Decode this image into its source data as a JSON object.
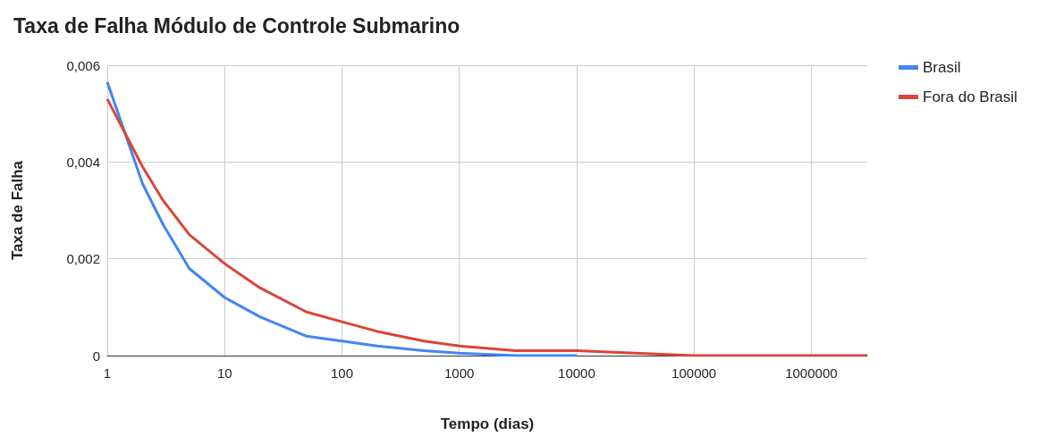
{
  "chart_data": {
    "type": "line",
    "title": "Taxa de Falha Módulo de Controle Submarino",
    "xlabel": "Tempo (dias)",
    "ylabel": "Taxa de Falha",
    "x": [
      1,
      2,
      3,
      5,
      10,
      20,
      50,
      100,
      200,
      500,
      1000,
      3000,
      10000,
      100000,
      1000000,
      3000000
    ],
    "series": [
      {
        "name": "Brasil",
        "color": "#4285f4",
        "values": [
          0.00565,
          0.00355,
          0.0027,
          0.0018,
          0.0012,
          0.0008,
          0.0004,
          0.0003,
          0.0002,
          0.0001,
          5e-05,
          0,
          0,
          null,
          null,
          null
        ]
      },
      {
        "name": "Fora do Brasil",
        "color": "#db4437",
        "values": [
          0.0053,
          0.0039,
          0.0032,
          0.0025,
          0.0019,
          0.0014,
          0.0009,
          0.0007,
          0.0005,
          0.0003,
          0.0002,
          0.0001,
          0.0001,
          0,
          0,
          0
        ]
      }
    ],
    "log": "x",
    "xlim": [
      1,
      3000000
    ],
    "xticks": [
      1,
      10,
      100,
      1000,
      10000,
      100000,
      1000000
    ],
    "ylim": [
      0,
      0.006
    ],
    "yticks": [
      0,
      {
        "value": 0.002,
        "label": "0,002"
      },
      {
        "value": 0.004,
        "label": "0,004"
      },
      {
        "value": 0.006,
        "label": "0,006"
      }
    ],
    "grid": true,
    "legend": "top right",
    "marker": "none",
    "line_style": "solid"
  }
}
